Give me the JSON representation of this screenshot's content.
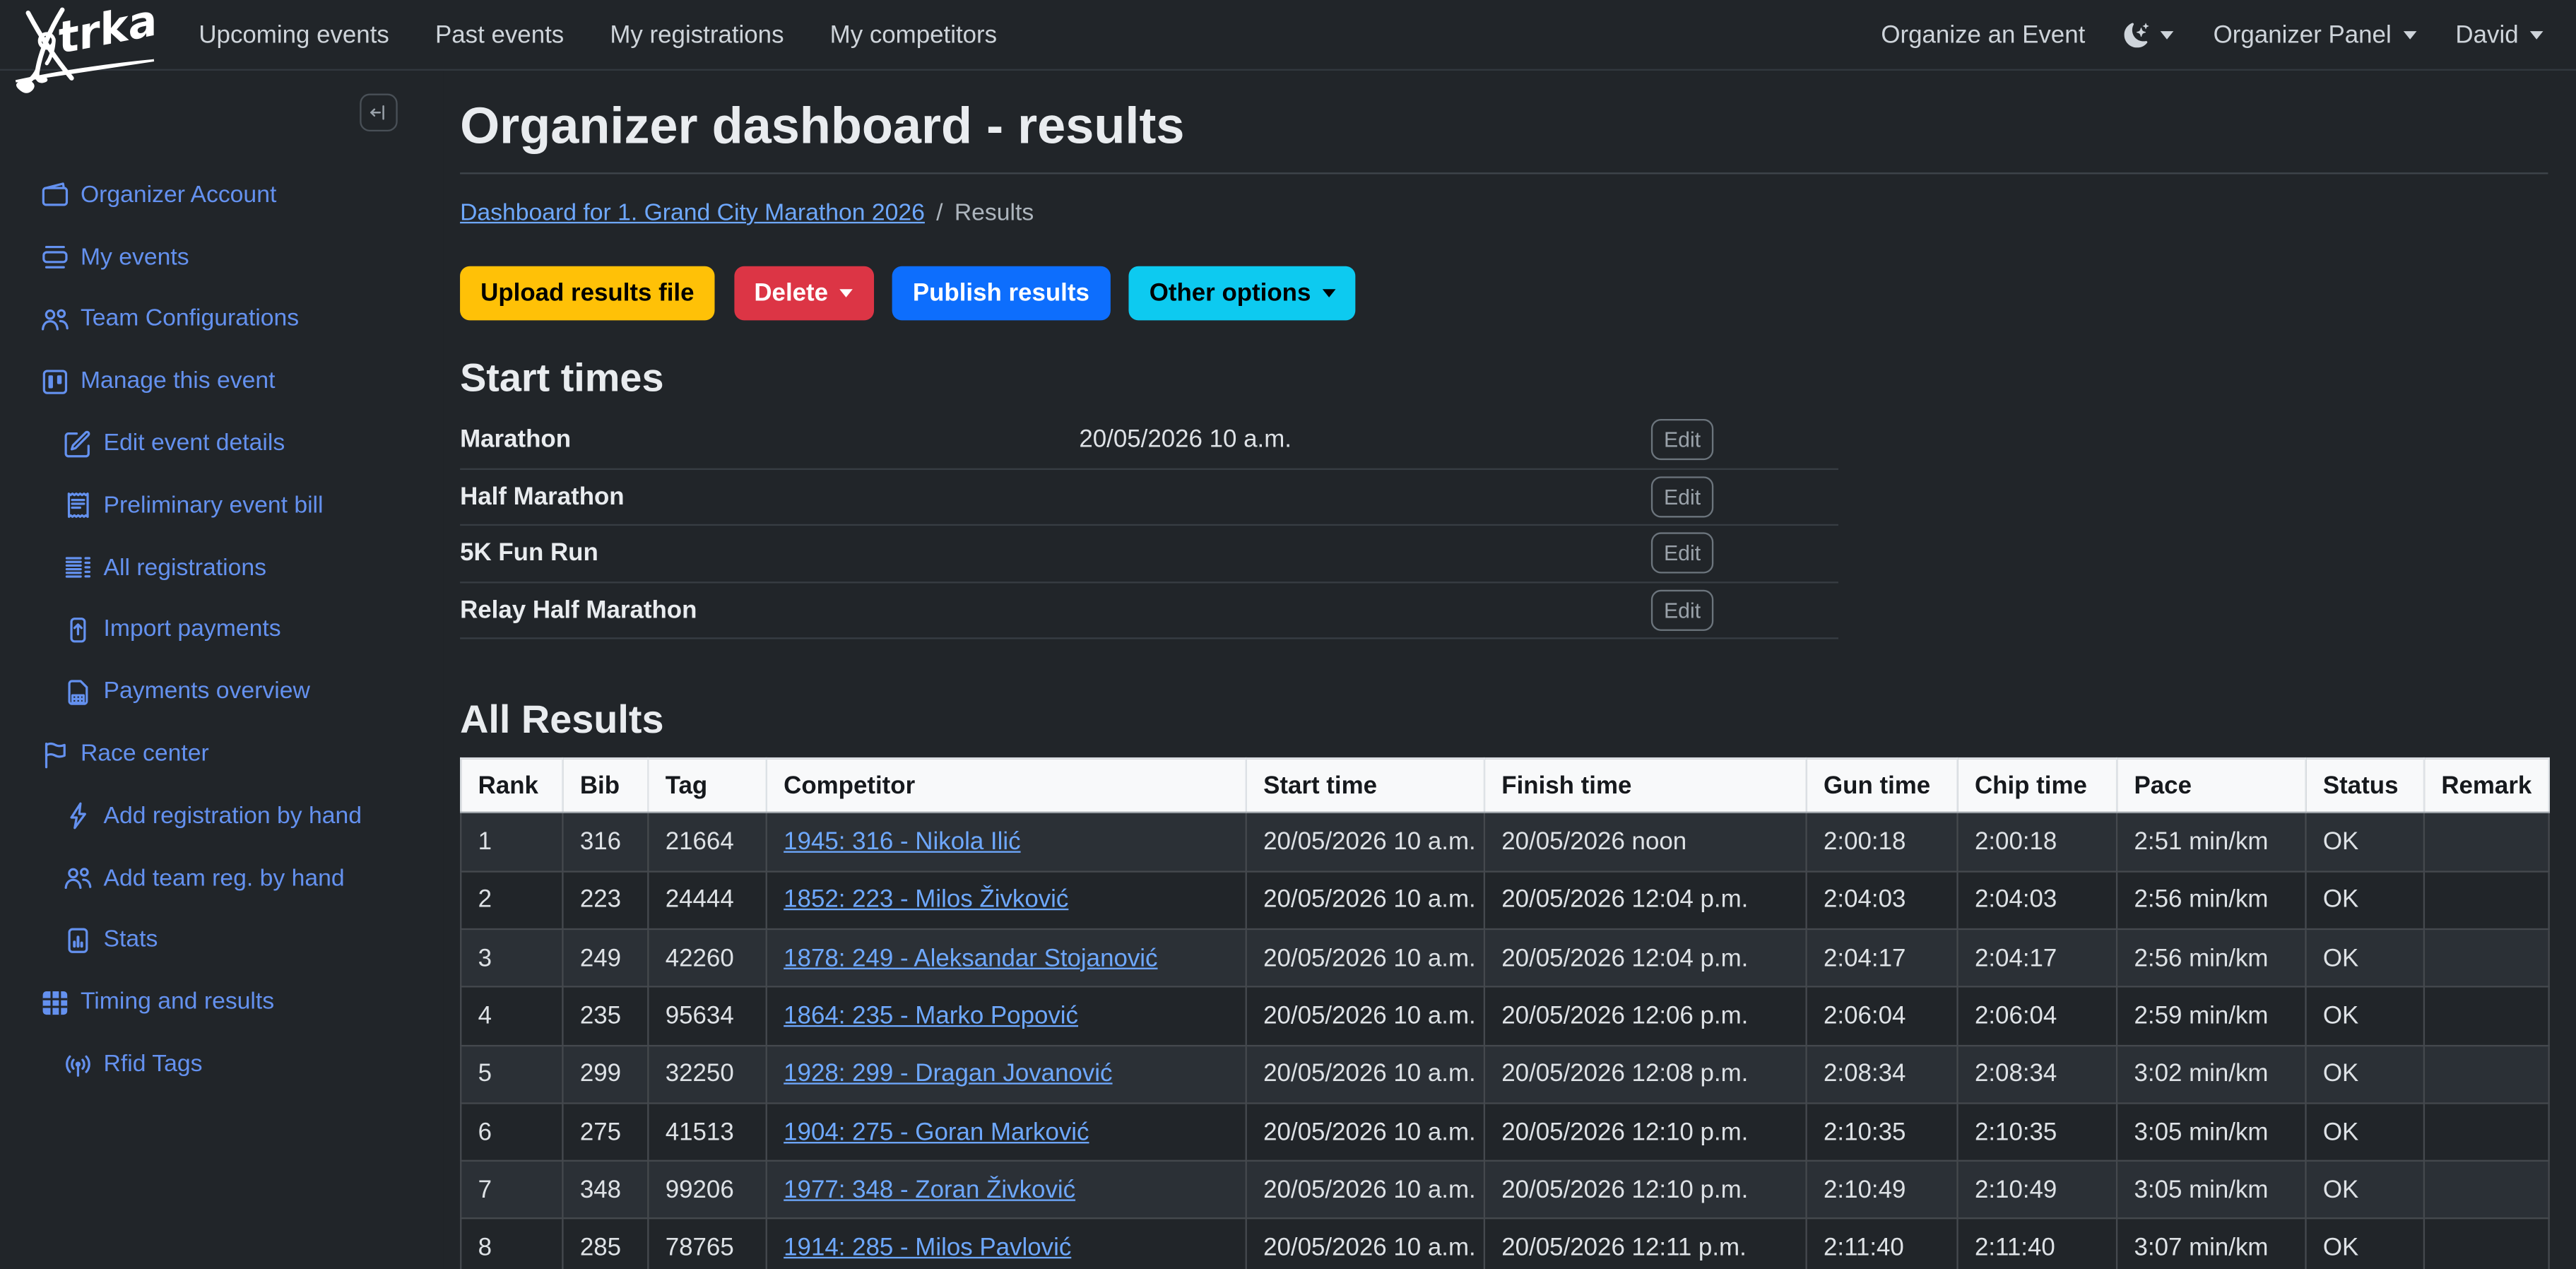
{
  "colors": {
    "page_bg": "#212529",
    "sidebar_link": "#6491ef",
    "content_link": "#6ea8fe",
    "warning_button": "#ffc107",
    "danger_button": "#dc3545",
    "primary_button": "#0d6efd",
    "info_button": "#0dcaf0",
    "table_header_bg": "#f8f9fa",
    "striped_row_bg": "#2b3036"
  },
  "brand": {
    "name": "trka"
  },
  "topnav": {
    "items": [
      "Upcoming events",
      "Past events",
      "My registrations",
      "My competitors"
    ],
    "right": {
      "organize": "Organize an Event",
      "theme_icon": "moon-stars-icon",
      "panel": "Organizer Panel",
      "user": "David"
    }
  },
  "sidebar": {
    "items": [
      {
        "label": "Organizer Account",
        "icon": "wallet-icon"
      },
      {
        "label": "My events",
        "icon": "events-icon"
      },
      {
        "label": "Team Configurations",
        "icon": "people-icon"
      },
      {
        "label": "Manage this event",
        "icon": "kanban-icon"
      },
      {
        "label": "Edit event details",
        "icon": "pencil-square-icon"
      },
      {
        "label": "Preliminary event bill",
        "icon": "receipt-icon"
      },
      {
        "label": "All registrations",
        "icon": "list-columns-icon"
      },
      {
        "label": "Import payments",
        "icon": "upload-icon"
      },
      {
        "label": "Payments overview",
        "icon": "spreadsheet-icon"
      },
      {
        "label": "Race center",
        "icon": "flag-icon"
      },
      {
        "label": "Add registration by hand",
        "icon": "lightning-icon"
      },
      {
        "label": "Add team reg. by hand",
        "icon": "people-icon"
      },
      {
        "label": "Stats",
        "icon": "bar-chart-icon"
      },
      {
        "label": "Timing and results",
        "icon": "table-icon"
      },
      {
        "label": "Rfid Tags",
        "icon": "broadcast-icon"
      }
    ]
  },
  "page": {
    "title": "Organizer dashboard - results",
    "breadcrumb_link": "Dashboard for 1. Grand City Marathon 2026",
    "breadcrumb_separator": "/",
    "breadcrumb_current": "Results"
  },
  "actions": {
    "upload": "Upload results file",
    "delete": "Delete",
    "publish": "Publish results",
    "other_options": "Other options"
  },
  "start_times": {
    "heading": "Start times",
    "edit_label": "Edit",
    "rows": [
      {
        "race": "Marathon",
        "time": "20/05/2026 10 a.m."
      },
      {
        "race": "Half Marathon",
        "time": ""
      },
      {
        "race": "5K Fun Run",
        "time": ""
      },
      {
        "race": "Relay Half Marathon",
        "time": ""
      }
    ]
  },
  "results": {
    "heading": "All Results",
    "columns": [
      "Rank",
      "Bib",
      "Tag",
      "Competitor",
      "Start time",
      "Finish time",
      "Gun time",
      "Chip time",
      "Pace",
      "Status",
      "Remark"
    ],
    "rows": [
      [
        "1",
        "316",
        "21664",
        "1945: 316 - Nikola Ilić",
        "20/05/2026 10 a.m.",
        "20/05/2026 noon",
        "2:00:18",
        "2:00:18",
        "2:51 min/km",
        "OK",
        ""
      ],
      [
        "2",
        "223",
        "24444",
        "1852: 223 - Milos Živković",
        "20/05/2026 10 a.m.",
        "20/05/2026 12:04 p.m.",
        "2:04:03",
        "2:04:03",
        "2:56 min/km",
        "OK",
        ""
      ],
      [
        "3",
        "249",
        "42260",
        "1878: 249 - Aleksandar Stojanović",
        "20/05/2026 10 a.m.",
        "20/05/2026 12:04 p.m.",
        "2:04:17",
        "2:04:17",
        "2:56 min/km",
        "OK",
        ""
      ],
      [
        "4",
        "235",
        "95634",
        "1864: 235 - Marko Popović",
        "20/05/2026 10 a.m.",
        "20/05/2026 12:06 p.m.",
        "2:06:04",
        "2:06:04",
        "2:59 min/km",
        "OK",
        ""
      ],
      [
        "5",
        "299",
        "32250",
        "1928: 299 - Dragan Jovanović",
        "20/05/2026 10 a.m.",
        "20/05/2026 12:08 p.m.",
        "2:08:34",
        "2:08:34",
        "3:02 min/km",
        "OK",
        ""
      ],
      [
        "6",
        "275",
        "41513",
        "1904: 275 - Goran Marković",
        "20/05/2026 10 a.m.",
        "20/05/2026 12:10 p.m.",
        "2:10:35",
        "2:10:35",
        "3:05 min/km",
        "OK",
        ""
      ],
      [
        "7",
        "348",
        "99206",
        "1977: 348 - Zoran Živković",
        "20/05/2026 10 a.m.",
        "20/05/2026 12:10 p.m.",
        "2:10:49",
        "2:10:49",
        "3:05 min/km",
        "OK",
        ""
      ],
      [
        "8",
        "285",
        "78765",
        "1914: 285 - Milos Pavlović",
        "20/05/2026 10 a.m.",
        "20/05/2026 12:11 p.m.",
        "2:11:40",
        "2:11:40",
        "3:07 min/km",
        "OK",
        ""
      ]
    ]
  }
}
